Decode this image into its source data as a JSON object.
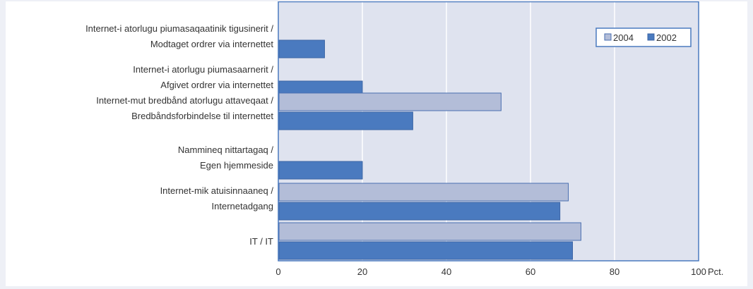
{
  "chart_data": {
    "type": "bar",
    "orientation": "horizontal",
    "categories": [
      [
        "Internet-i atorlugu piumasaqaatinik tigusinerit /",
        "Modtaget ordrer via internettet"
      ],
      [
        "Internet-i atorlugu piumasaarnerit /",
        "Afgivet ordrer via internettet"
      ],
      [
        "Internet-mut bredbånd atorlugu attaveqaat /",
        "Bredbåndsforbindelse til internettet"
      ],
      [
        "Nammineq nittartagaq /",
        "Egen hjemmeside"
      ],
      [
        "Internet-mik atuisinnaaneq /",
        "Internetadgang"
      ],
      [
        "IT / IT"
      ]
    ],
    "series": [
      {
        "name": "2004",
        "color": "#b3bdd8",
        "values": [
          null,
          null,
          53,
          null,
          69,
          72
        ]
      },
      {
        "name": "2002",
        "color": "#4a7abf",
        "values": [
          11,
          20,
          32,
          20,
          67,
          70
        ]
      }
    ],
    "xlim": [
      0,
      100
    ],
    "xticks": [
      "0",
      "20",
      "40",
      "60",
      "80",
      "100"
    ],
    "xunit": "Pct.",
    "grid": true,
    "legend_position": "top-right",
    "plot_background": "#dfe3ef",
    "gridline_color": "#ffffff",
    "frame_color": "#4a7abf"
  }
}
